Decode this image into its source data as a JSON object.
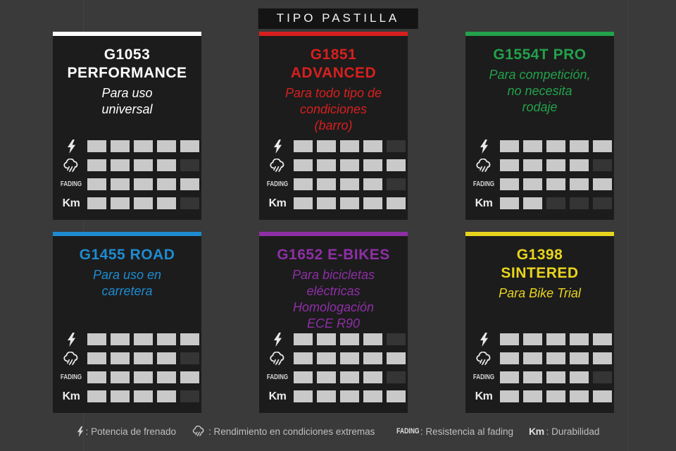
{
  "header": {
    "title": "TIPO PASTILLA"
  },
  "metrics": {
    "fading_label": "FADING",
    "km_label": "Km",
    "order": [
      "power",
      "wet",
      "fading",
      "km"
    ]
  },
  "rating_scale": 5,
  "square_colors": {
    "on": "#c9c9c9",
    "off": "#353535"
  },
  "chart_data": {
    "type": "table",
    "title": "TIPO PASTILLA",
    "categories": [
      "Potencia de frenado",
      "Rendimiento en condiciones extremas",
      "Resistencia al fading",
      "Durabilidad"
    ],
    "scale_max": 5,
    "series": [
      {
        "name": "G1053 PERFORMANCE",
        "values": [
          5,
          4,
          5,
          4
        ]
      },
      {
        "name": "G1851 ADVANCED",
        "values": [
          4,
          5,
          4,
          5
        ]
      },
      {
        "name": "G1554T PRO",
        "values": [
          5,
          4,
          5,
          2
        ]
      },
      {
        "name": "G1455 ROAD",
        "values": [
          5,
          4,
          5,
          4
        ]
      },
      {
        "name": "G1652 E-BIKES",
        "values": [
          4,
          5,
          4,
          5
        ]
      },
      {
        "name": "G1398 SINTERED",
        "values": [
          5,
          5,
          4,
          5
        ]
      }
    ]
  },
  "cards": [
    {
      "title": "G1053\nPERFORMANCE",
      "subtitle": "Para uso\nuniversal",
      "accent_color": "#ffffff",
      "ratings": {
        "power": 5,
        "wet": 4,
        "fading": 5,
        "km": 4
      }
    },
    {
      "title": "G1851\nADVANCED",
      "subtitle": "Para todo tipo de\ncondiciones\n(barro)",
      "accent_color": "#d6201f",
      "ratings": {
        "power": 4,
        "wet": 5,
        "fading": 4,
        "km": 5
      }
    },
    {
      "title": "G1554T PRO",
      "subtitle": "Para competición,\nno necesita\nrodaje",
      "accent_color": "#23a14b",
      "ratings": {
        "power": 5,
        "wet": 4,
        "fading": 5,
        "km": 2
      }
    },
    {
      "title": "G1455 ROAD",
      "subtitle": "Para uso en\ncarretera",
      "accent_color": "#1e8bd0",
      "ratings": {
        "power": 5,
        "wet": 4,
        "fading": 5,
        "km": 4
      }
    },
    {
      "title": "G1652 E-BIKES",
      "subtitle": "Para bicicletas\neléctricas\nHomologación\nECE R90",
      "accent_color": "#8e2fa6",
      "ratings": {
        "power": 4,
        "wet": 5,
        "fading": 4,
        "km": 5
      }
    },
    {
      "title": "G1398\nSINTERED",
      "subtitle": "Para Bike Trial",
      "accent_color": "#e8d41e",
      "ratings": {
        "power": 5,
        "wet": 5,
        "fading": 4,
        "km": 5
      }
    }
  ],
  "legend": {
    "items": [
      {
        "icon": "lightning-icon",
        "label": ": Potencia de frenado"
      },
      {
        "icon": "rain-icon",
        "label": ": Rendimiento en condiciones extremas"
      },
      {
        "icon": "fading-label",
        "label": ": Resistencia al fading"
      },
      {
        "icon": "km-label",
        "label": ": Durabilidad"
      }
    ]
  }
}
